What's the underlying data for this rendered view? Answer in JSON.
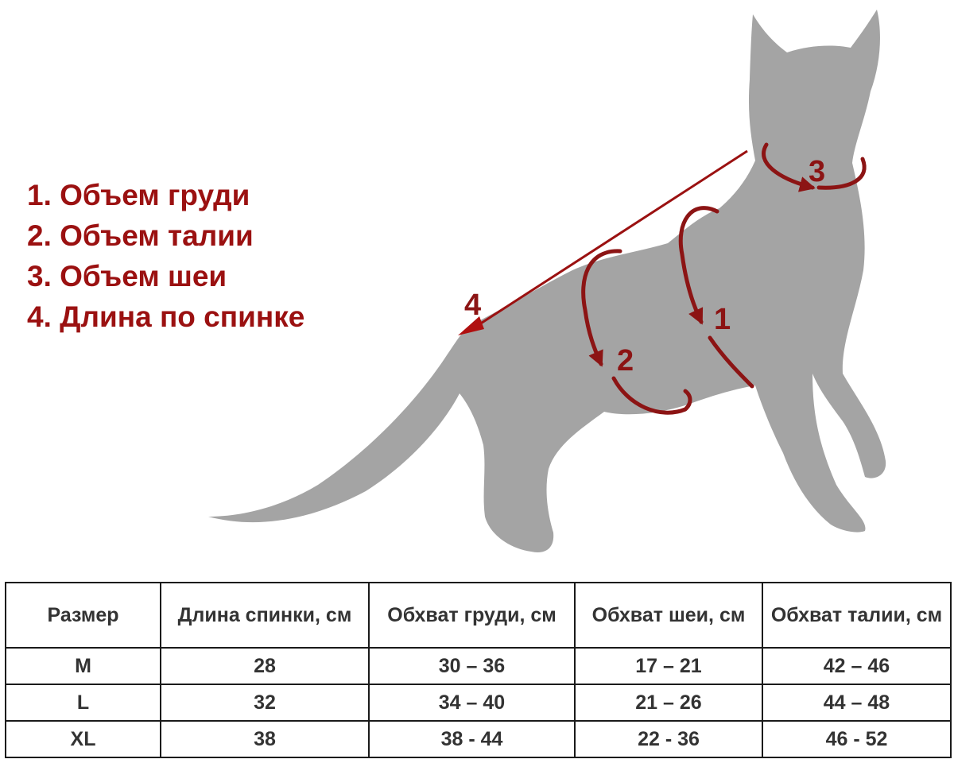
{
  "legend": [
    {
      "text": "1. Объем груди"
    },
    {
      "text": "2. Объем талии"
    },
    {
      "text": "3. Объем шеи"
    },
    {
      "text": "4. Длина по спинке"
    }
  ],
  "markers": {
    "chest": "1",
    "waist": "2",
    "neck": "3",
    "back": "4"
  },
  "colors": {
    "accent": "#9b1111",
    "silhouette": "#a4a4a4",
    "table_text": "#333333",
    "table_border": "#1a1a1a"
  },
  "table": {
    "headers": [
      "Размер",
      "Длина спинки, см",
      "Обхват груди, см",
      "Обхват шеи, см",
      "Обхват талии, см"
    ],
    "rows": [
      [
        "M",
        "28",
        "30 – 36",
        "17 – 21",
        "42 – 46"
      ],
      [
        "L",
        "32",
        "34 – 40",
        "21 – 26",
        "44 – 48"
      ],
      [
        "XL",
        "38",
        "38 - 44",
        "22 - 36",
        "46 - 52"
      ]
    ]
  }
}
